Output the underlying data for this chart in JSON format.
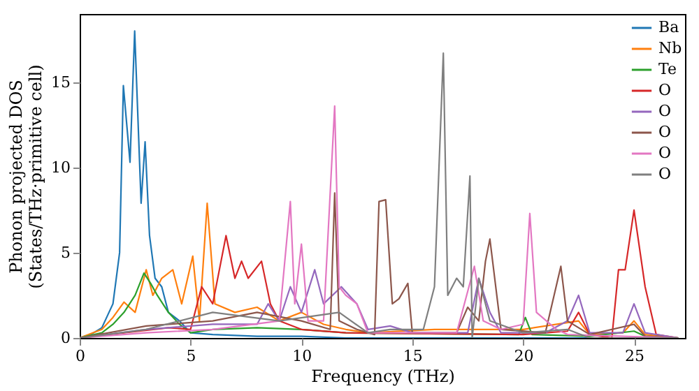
{
  "chart_data": {
    "type": "line",
    "xlabel": "Frequency (THz)",
    "ylabel": "Phonon projected DOS\n(States/THz·primitive cell)",
    "xlim": [
      0,
      27.3
    ],
    "ylim": [
      0,
      19
    ],
    "xticks": [
      0,
      5,
      10,
      15,
      20,
      25
    ],
    "yticks": [
      0,
      5,
      10,
      15
    ],
    "grid": false,
    "legend": "top right",
    "marker": "none",
    "line_style": "solid",
    "series": [
      {
        "name": "Ba",
        "color": "#1f77b4",
        "x": [
          0,
          0.5,
          1,
          1.5,
          1.8,
          1.97,
          2.27,
          2.48,
          2.77,
          2.95,
          3.15,
          3.4,
          3.7,
          4,
          4.5,
          5,
          6,
          8,
          10,
          12,
          27
        ],
        "values": [
          0,
          0.2,
          0.6,
          2,
          5,
          14.8,
          10.3,
          18,
          7.9,
          11.5,
          6,
          3.5,
          3,
          1.5,
          1,
          0.3,
          0.2,
          0.1,
          0.1,
          0,
          0
        ]
      },
      {
        "name": "Nb",
        "color": "#ff7f0e",
        "x": [
          0,
          1,
          1.5,
          2,
          2.5,
          3,
          3.3,
          3.7,
          4.2,
          4.6,
          5.1,
          5.4,
          5.75,
          6.1,
          7,
          8,
          9,
          10,
          11,
          12,
          13,
          16,
          18,
          20,
          22.5,
          23,
          24.5,
          25,
          25.5,
          27
        ],
        "values": [
          0,
          0.5,
          1.2,
          2.1,
          1.5,
          4,
          2.5,
          3.5,
          4,
          2,
          4.8,
          1,
          7.9,
          2,
          1.5,
          1.8,
          1,
          1.5,
          0.8,
          0.5,
          0.3,
          0.5,
          0.5,
          0.5,
          1,
          0.2,
          0.3,
          1,
          0.2,
          0
        ]
      },
      {
        "name": "Te",
        "color": "#2ca02c",
        "x": [
          0,
          1,
          1.5,
          2,
          2.5,
          2.9,
          3.2,
          3.5,
          4,
          4.5,
          5,
          6,
          8,
          10,
          12,
          19.8,
          20.1,
          20.4,
          23,
          25,
          25.5,
          27
        ],
        "values": [
          0,
          0.3,
          0.8,
          1.5,
          2.5,
          3.8,
          3.2,
          2.5,
          1.5,
          0.8,
          0.3,
          0.5,
          0.6,
          0.5,
          0.3,
          0.2,
          1.2,
          0.2,
          0.1,
          0.4,
          0.1,
          0
        ]
      },
      {
        "name": "O",
        "color": "#d62728",
        "x": [
          0,
          2,
          4,
          5,
          5.5,
          6,
          6.6,
          7,
          7.3,
          7.6,
          8.2,
          8.6,
          9,
          10,
          12,
          20,
          22,
          22.5,
          23,
          24,
          24.3,
          24.6,
          25,
          25.5,
          26,
          27
        ],
        "values": [
          0,
          0.3,
          0.6,
          0.5,
          3,
          2,
          6,
          3.5,
          4.5,
          3.5,
          4.5,
          2,
          1,
          0.5,
          0.3,
          0.2,
          0.4,
          1.5,
          0.2,
          0,
          4,
          4,
          7.5,
          3,
          0.2,
          0
        ]
      },
      {
        "name": "O",
        "color": "#9467bd",
        "x": [
          0,
          3,
          6,
          8,
          8.5,
          9,
          9.5,
          10,
          10.6,
          11,
          11.8,
          12.5,
          13,
          14,
          15,
          17.5,
          18,
          18.5,
          19,
          21,
          22,
          22.5,
          23,
          24.5,
          25,
          25.5,
          27
        ],
        "values": [
          0,
          0.5,
          0.8,
          0.8,
          2,
          1,
          3,
          1.5,
          4,
          2,
          3,
          2,
          0.5,
          0.7,
          0.3,
          0.3,
          3.5,
          1.5,
          0.3,
          0.3,
          1,
          2.5,
          0.3,
          0.3,
          2,
          0.3,
          0
        ]
      },
      {
        "name": "O",
        "color": "#8c564b",
        "x": [
          0,
          3,
          6,
          8,
          10,
          11.3,
          11.5,
          11.7,
          12.5,
          13.3,
          13.5,
          13.8,
          14.1,
          14.4,
          14.8,
          15,
          17,
          17.5,
          18,
          18.3,
          18.5,
          19,
          21,
          21.7,
          22,
          23,
          25,
          25.5,
          27
        ],
        "values": [
          0,
          0.7,
          1,
          1.5,
          1,
          0.5,
          8.5,
          1,
          0.5,
          0.2,
          8,
          8.1,
          2,
          2.3,
          3.2,
          0.3,
          0.3,
          1.8,
          1,
          4.5,
          5.8,
          0.5,
          0.3,
          4.2,
          1,
          0.2,
          0.8,
          0.1,
          0
        ]
      },
      {
        "name": "O",
        "color": "#e377c2",
        "x": [
          0,
          3,
          6,
          9,
          9.5,
          9.7,
          10,
          10.3,
          11,
          11.5,
          11.7,
          12,
          12.5,
          13,
          17,
          17.8,
          18.2,
          19,
          20,
          20.3,
          20.6,
          21.5,
          22,
          27
        ],
        "values": [
          0,
          0.3,
          0.5,
          1,
          8,
          2,
          5.5,
          1,
          1,
          13.6,
          3,
          2.5,
          2,
          0.3,
          0.3,
          4.2,
          1,
          0.5,
          0.8,
          7.3,
          1.5,
          0.5,
          0.2,
          0
        ]
      },
      {
        "name": "O",
        "color": "#7f7f7f",
        "x": [
          0,
          3,
          6,
          9,
          11.7,
          13,
          14,
          15.5,
          16,
          16.4,
          16.6,
          17,
          17.3,
          17.6,
          17.7,
          18,
          18.5,
          20,
          22,
          23,
          27
        ],
        "values": [
          0,
          0.5,
          1.5,
          1,
          1.5,
          0.3,
          0.5,
          0.5,
          3,
          16.7,
          2.5,
          3.5,
          3,
          9.5,
          0,
          3.5,
          1,
          0.3,
          0.5,
          0,
          0
        ]
      }
    ]
  }
}
